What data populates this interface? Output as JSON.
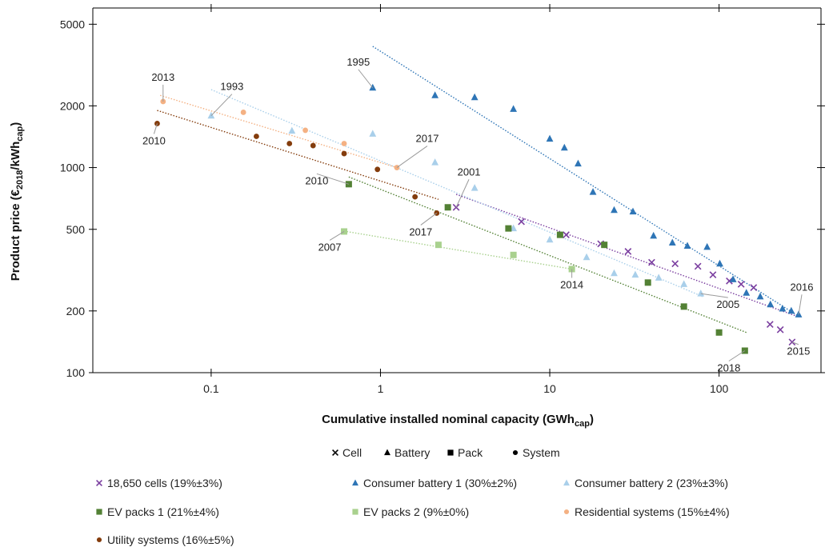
{
  "chart_data": {
    "type": "scatter",
    "xscale": "log",
    "yscale": "log",
    "xlim": [
      0.02,
      400
    ],
    "ylim": [
      100,
      6000
    ],
    "xticks": [
      0.1,
      1,
      10,
      100
    ],
    "xtick_labels": [
      "0.1",
      "1",
      "10",
      "100"
    ],
    "yticks": [
      100,
      200,
      500,
      1000,
      2000,
      5000
    ],
    "ytick_labels": [
      "100",
      "200",
      "500",
      "1000",
      "2000",
      "5000"
    ],
    "xlabel": {
      "main": "Cumulative installed nominal capacity (GWh",
      "sub": "cap",
      "end": ")"
    },
    "ylabel": {
      "main": "Product price (€",
      "sub1": "2018",
      "mid": "/kWh",
      "sub2": "cap",
      "end": ")"
    },
    "grid": false,
    "marker_legend": [
      {
        "marker": "x",
        "label": "Cell"
      },
      {
        "marker": "triangle",
        "label": "Battery"
      },
      {
        "marker": "square",
        "label": "Pack"
      },
      {
        "marker": "circle",
        "label": "System"
      }
    ],
    "series": [
      {
        "name": "18,650 cells (19%±3%)",
        "marker": "x",
        "color": "#7b3fa0",
        "x": [
          2.8,
          6.8,
          12.5,
          20,
          29,
          40,
          55,
          75,
          92,
          115,
          135,
          160,
          200,
          230,
          270
        ],
        "y": [
          640,
          545,
          470,
          425,
          390,
          345,
          340,
          330,
          300,
          280,
          270,
          260,
          172,
          162,
          141
        ],
        "trend": {
          "x": [
            2.8,
            290
          ],
          "y": [
            740,
            188
          ]
        }
      },
      {
        "name": "Consumer battery 1 (30%±2%)",
        "marker": "triangle",
        "color": "#2e75b6",
        "x": [
          0.9,
          2.1,
          3.6,
          6.1,
          10,
          12.2,
          14.7,
          18,
          24,
          31,
          41,
          53,
          65,
          85,
          101,
          121,
          145,
          175,
          201,
          237,
          267,
          295
        ],
        "y": [
          2450,
          2250,
          2200,
          1930,
          1380,
          1250,
          1045,
          760,
          620,
          610,
          465,
          430,
          415,
          410,
          340,
          285,
          245,
          235,
          215,
          205,
          200,
          192
        ],
        "trend": {
          "x": [
            0.9,
            290
          ],
          "y": [
            3900,
            190
          ]
        }
      },
      {
        "name": "Consumer battery 2 (23%±3%)",
        "marker": "triangle",
        "color": "#a9cfea",
        "x": [
          0.1,
          0.3,
          0.9,
          2.1,
          3.6,
          6.1,
          10,
          16.5,
          24,
          32,
          44,
          62,
          78
        ],
        "y": [
          1790,
          1510,
          1460,
          1060,
          795,
          505,
          445,
          365,
          305,
          300,
          290,
          270,
          243
        ],
        "trend": {
          "x": [
            0.1,
            80
          ],
          "y": [
            2400,
            235
          ]
        }
      },
      {
        "name": "EV packs 1 (21%±4%)",
        "marker": "square",
        "color": "#538135",
        "x": [
          0.65,
          2.5,
          5.7,
          11.5,
          21,
          38,
          62,
          100,
          142
        ],
        "y": [
          830,
          640,
          505,
          470,
          420,
          275,
          210,
          157,
          128
        ],
        "trend": {
          "x": [
            0.65,
            145
          ],
          "y": [
            900,
            157
          ]
        }
      },
      {
        "name": "EV packs 2 (9%±0%)",
        "marker": "square",
        "color": "#a9d18e",
        "x": [
          0.61,
          2.2,
          6.1,
          13.5
        ],
        "y": [
          488,
          420,
          375,
          320
        ],
        "trend": {
          "x": [
            0.61,
            13.5
          ],
          "y": [
            490,
            320
          ]
        }
      },
      {
        "name": "Residential systems (15%±4%)",
        "marker": "circle",
        "color": "#f4b183",
        "x": [
          0.052,
          0.155,
          0.36,
          0.61,
          1.25
        ],
        "y": [
          2100,
          1860,
          1520,
          1310,
          1000
        ],
        "trend": {
          "x": [
            0.05,
            1.25
          ],
          "y": [
            2250,
            1000
          ]
        }
      },
      {
        "name": "Utility systems (16%±5%)",
        "marker": "circle",
        "color": "#843c0c",
        "x": [
          0.048,
          0.185,
          0.29,
          0.4,
          0.61,
          0.96,
          1.6,
          2.15
        ],
        "y": [
          1640,
          1420,
          1310,
          1280,
          1170,
          980,
          720,
          600
        ],
        "trend": {
          "x": [
            0.048,
            2.2
          ],
          "y": [
            1900,
            700
          ]
        }
      }
    ],
    "annotations": [
      {
        "text": "2013",
        "x": 0.052,
        "y": 2100
      },
      {
        "text": "1993",
        "x": 0.1,
        "y": 1790
      },
      {
        "text": "1995",
        "x": 0.9,
        "y": 2450
      },
      {
        "text": "2010",
        "x": 0.048,
        "y": 1640
      },
      {
        "text": "2017",
        "x": 1.25,
        "y": 1000
      },
      {
        "text": "2001",
        "x": 2.8,
        "y": 640
      },
      {
        "text": "2010",
        "x": 0.65,
        "y": 830
      },
      {
        "text": "2017",
        "x": 2.15,
        "y": 600
      },
      {
        "text": "2007",
        "x": 0.61,
        "y": 488
      },
      {
        "text": "2014",
        "x": 13.5,
        "y": 320
      },
      {
        "text": "2005",
        "x": 78,
        "y": 243
      },
      {
        "text": "2016",
        "x": 295,
        "y": 192
      },
      {
        "text": "2018",
        "x": 142,
        "y": 128
      },
      {
        "text": "2015",
        "x": 270,
        "y": 141
      }
    ]
  }
}
